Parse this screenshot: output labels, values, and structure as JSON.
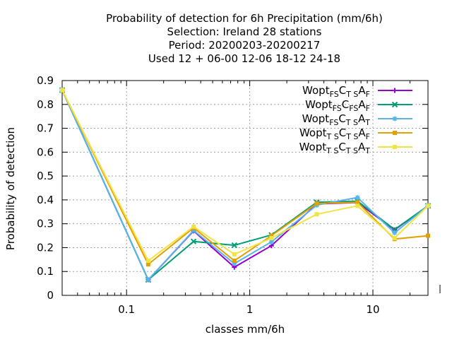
{
  "chart_data": {
    "type": "line",
    "title_lines": [
      "Probability of detection  for 6h Precipitation (mm/6h)",
      "Selection: Ireland      28 stations",
      "Period: 20200203-20200217",
      "Used  12 + 06-00 12-06 18-12 24-18"
    ],
    "xlabel": "classes mm/6h",
    "ylabel": "Probability of detection",
    "x_scale": "log",
    "xlim": [
      0.03,
      28
    ],
    "ylim": [
      0,
      0.9
    ],
    "x_ticks": [
      0.1,
      1,
      10
    ],
    "x_tick_labels": [
      "0.1",
      "1",
      "10"
    ],
    "y_ticks": [
      0,
      0.1,
      0.2,
      0.3,
      0.4,
      0.5,
      0.6,
      0.7,
      0.8,
      0.9
    ],
    "y_tick_labels": [
      "0",
      "0.1",
      "0.2",
      "0.3",
      "0.4",
      "0.5",
      "0.6",
      "0.7",
      "0.8",
      "0.9"
    ],
    "grid": true,
    "legend_position": "top-right",
    "x": [
      0.03,
      0.15,
      0.35,
      0.75,
      1.5,
      3.5,
      7.5,
      15,
      28
    ],
    "series": [
      {
        "name_parts": [
          [
            "Wopt",
            ""
          ],
          [
            "FS",
            "sub"
          ],
          [
            "C",
            ""
          ],
          [
            "T S",
            "sub"
          ],
          [
            "A",
            ""
          ],
          [
            "F",
            "sub"
          ]
        ],
        "color": "#9400D3",
        "marker": "plus",
        "values": [
          0.86,
          0.065,
          0.27,
          0.118,
          0.208,
          0.383,
          0.389,
          0.274,
          0.375
        ]
      },
      {
        "name_parts": [
          [
            "Wopt",
            ""
          ],
          [
            "FS",
            "sub"
          ],
          [
            "C",
            ""
          ],
          [
            "FS",
            "sub"
          ],
          [
            "A",
            ""
          ],
          [
            "F",
            "sub"
          ]
        ],
        "color": "#009E73",
        "marker": "x",
        "values": [
          0.86,
          0.065,
          0.226,
          0.21,
          0.253,
          0.39,
          0.395,
          0.276,
          0.375
        ]
      },
      {
        "name_parts": [
          [
            "Wopt",
            ""
          ],
          [
            "FS",
            "sub"
          ],
          [
            "C",
            ""
          ],
          [
            "T S",
            "sub"
          ],
          [
            "A",
            ""
          ],
          [
            "T",
            "sub"
          ]
        ],
        "color": "#56B4E9",
        "marker": "star",
        "values": [
          0.86,
          0.065,
          0.272,
          0.133,
          0.224,
          0.378,
          0.41,
          0.262,
          0.375
        ]
      },
      {
        "name_parts": [
          [
            "Wopt",
            ""
          ],
          [
            "T S",
            "sub"
          ],
          [
            "C",
            ""
          ],
          [
            "T S",
            "sub"
          ],
          [
            "A",
            ""
          ],
          [
            "F",
            "sub"
          ]
        ],
        "color": "#E69F00",
        "marker": "box",
        "values": [
          0.86,
          0.13,
          0.283,
          0.145,
          0.25,
          0.385,
          0.39,
          0.236,
          0.25
        ]
      },
      {
        "name_parts": [
          [
            "Wopt",
            ""
          ],
          [
            "T S",
            "sub"
          ],
          [
            "C",
            ""
          ],
          [
            "T S",
            "sub"
          ],
          [
            "A",
            ""
          ],
          [
            "T",
            "sub"
          ]
        ],
        "color": "#F0E442",
        "marker": "box",
        "values": [
          0.86,
          0.145,
          0.288,
          0.172,
          0.24,
          0.34,
          0.375,
          0.24,
          0.375
        ]
      }
    ]
  }
}
